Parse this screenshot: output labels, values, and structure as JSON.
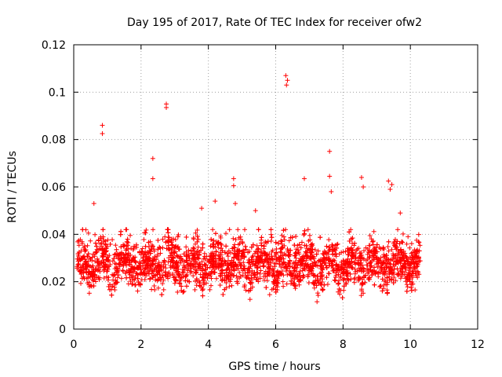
{
  "chart_data": {
    "type": "scatter",
    "title": "Day 195 of 2017, Rate Of TEC Index for receiver ofw2",
    "xlabel": "GPS time / hours",
    "ylabel": "ROTI / TECUs",
    "xlim": [
      0,
      12
    ],
    "ylim": [
      0,
      0.12
    ],
    "x_ticks": [
      "0",
      "2",
      "4",
      "6",
      "8",
      "10",
      "12"
    ],
    "y_ticks": [
      "0",
      "0.02",
      "0.04",
      "0.06",
      "0.08",
      "0.1",
      "0.12"
    ],
    "grid": true,
    "marker": "+",
    "marker_color": "#ff0000",
    "series": [
      {
        "name": "ROTI",
        "bulk": {
          "x_range": [
            0.1,
            10.3
          ],
          "y_range": [
            0.006,
            0.042
          ],
          "typical_y": 0.02
        },
        "x": [
          0.6,
          0.85,
          0.85,
          2.35,
          2.35,
          2.75,
          2.75,
          3.8,
          4.2,
          4.75,
          4.75,
          4.8,
          5.4,
          6.3,
          6.32,
          6.35,
          6.85,
          7.6,
          7.6,
          7.65,
          8.55,
          8.6,
          9.35,
          9.4,
          9.45,
          9.7
        ],
        "values": [
          0.053,
          0.086,
          0.0825,
          0.072,
          0.0635,
          0.095,
          0.0935,
          0.051,
          0.054,
          0.0635,
          0.0605,
          0.053,
          0.05,
          0.107,
          0.103,
          0.105,
          0.0635,
          0.075,
          0.0645,
          0.058,
          0.064,
          0.06,
          0.0625,
          0.059,
          0.061,
          0.049
        ]
      }
    ]
  }
}
